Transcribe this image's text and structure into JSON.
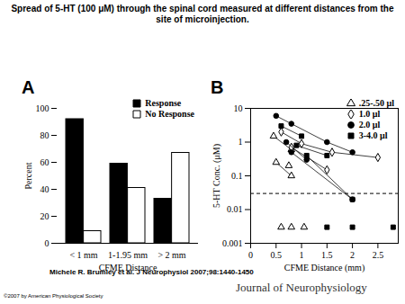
{
  "title": "Spread of 5-HT (100 μM) through the spinal cord measured at different distances from the site of microinjection.",
  "citation": "Michele R. Brumley et al. J Neurophysiol 2007;98:1440-1450",
  "journal": "Journal of Neurophysiology",
  "copyright": "©2007 by American Physiological Society",
  "chart_data": [
    {
      "panel": "A",
      "type": "bar",
      "categories": [
        "< 1 mm",
        "1-1.95 mm",
        "> 2 mm"
      ],
      "series": [
        {
          "name": "Response",
          "color": "#000000",
          "values": [
            92,
            59,
            33
          ]
        },
        {
          "name": "No Response",
          "color": "#ffffff",
          "values": [
            9,
            41,
            67
          ]
        }
      ],
      "xlabel": "CFME Distance",
      "ylabel": "Percent",
      "ylim": [
        0,
        100
      ],
      "yticks": [
        0,
        20,
        40,
        60,
        80,
        100
      ],
      "legend": "upper right"
    },
    {
      "panel": "B",
      "type": "line",
      "xlabel": "CFME Distance (mm)",
      "ylabel": "5-HT Conc. (μM)",
      "log": "y",
      "xlim": [
        0,
        2.9
      ],
      "xticks": [
        0,
        0.5,
        1,
        1.5,
        2,
        2.5
      ],
      "ylim": [
        0.001,
        10
      ],
      "yticks": [
        0.001,
        0.01,
        0.1,
        1,
        10
      ],
      "threshold": 0.03,
      "legend": "upper right",
      "series": [
        {
          "name": ".25-.50 μl",
          "marker": "triangle-open",
          "color": "#000000",
          "segments": [
            {
              "x": [
                0.45,
                0.8
              ],
              "values": [
                1.5,
                0.6
              ]
            },
            {
              "x": [
                0.5,
                0.8
              ],
              "values": [
                0.25,
                0.1
              ]
            },
            {
              "x": [
                0.75
              ],
              "values": [
                0.2
              ]
            },
            {
              "x": [
                0.6
              ],
              "values": [
                0.003
              ]
            },
            {
              "x": [
                0.8
              ],
              "values": [
                0.003
              ]
            },
            {
              "x": [
                1.05
              ],
              "values": [
                0.003
              ]
            }
          ]
        },
        {
          "name": "1.0 μl",
          "marker": "diamond-open",
          "color": "#000000",
          "segments": [
            {
              "x": [
                0.6,
                1.0,
                1.6,
                2.5
              ],
              "values": [
                2.0,
                0.9,
                0.5,
                0.35
              ]
            },
            {
              "x": [
                0.8,
                1.5
              ],
              "values": [
                0.7,
                0.15
              ]
            }
          ]
        },
        {
          "name": "2.0 μl",
          "marker": "circle",
          "color": "#000000",
          "segments": [
            {
              "x": [
                0.5,
                0.8,
                1.5,
                2.0
              ],
              "values": [
                6,
                3.5,
                1.0,
                0.5
              ]
            },
            {
              "x": [
                0.7,
                1.1
              ],
              "values": [
                1.0,
                0.3
              ]
            },
            {
              "x": [
                0.8,
                2.0
              ],
              "values": [
                0.5,
                0.02
              ]
            }
          ]
        },
        {
          "name": "3-4.0 μl",
          "marker": "square",
          "color": "#000000",
          "segments": [
            {
              "x": [
                0.6,
                1.0
              ],
              "values": [
                3,
                1.5
              ]
            },
            {
              "x": [
                0.9,
                1.5
              ],
              "values": [
                0.8,
                0.4
              ]
            },
            {
              "x": [
                1.1,
                2.0
              ],
              "values": [
                0.4,
                0.02
              ]
            },
            {
              "x": [
                1.5
              ],
              "values": [
                0.003
              ]
            },
            {
              "x": [
                2.0
              ],
              "values": [
                0.003
              ]
            },
            {
              "x": [
                2.8
              ],
              "values": [
                0.003
              ]
            }
          ]
        }
      ]
    }
  ]
}
